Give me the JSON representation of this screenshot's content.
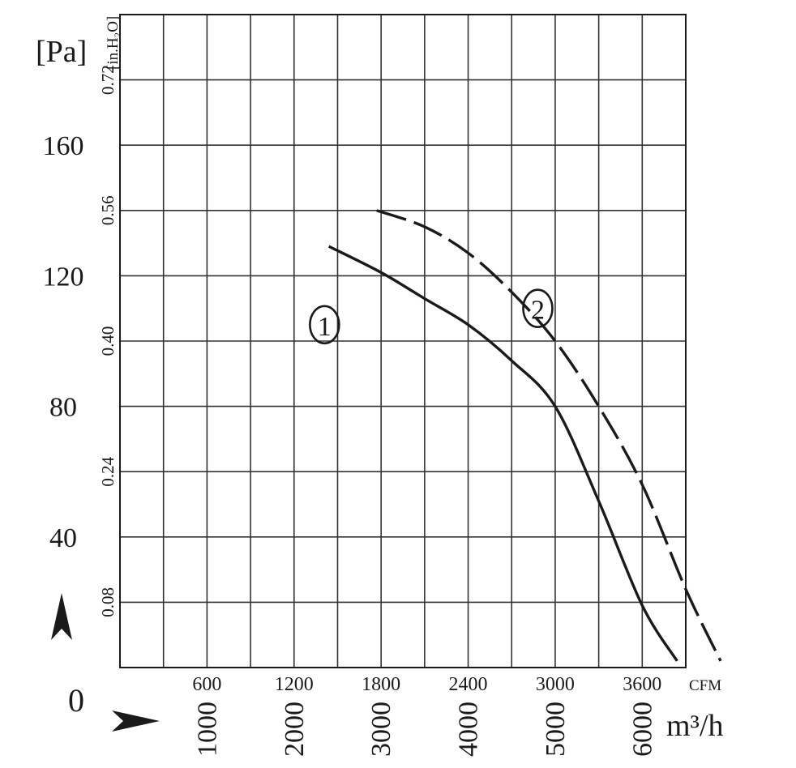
{
  "chart_data": {
    "type": "line",
    "y_primary": {
      "unit_label": "[Pa]",
      "ticks": [
        0,
        40,
        80,
        120,
        160
      ],
      "range": [
        0,
        200
      ]
    },
    "y_secondary": {
      "unit_label": "[in.H₂O]",
      "ticks": [
        "0.08",
        "0.24",
        "0.40",
        "0.56",
        "0.72"
      ],
      "tick_values_pa": [
        20,
        60,
        100,
        140,
        180
      ]
    },
    "x_primary": {
      "unit_label": "m³/h",
      "ticks": [
        "1000",
        "2000",
        "3000",
        "4000",
        "5000",
        "6000"
      ],
      "range": [
        0,
        6500
      ]
    },
    "x_secondary": {
      "unit_label": "CFM",
      "ticks": [
        "600",
        "1200",
        "1800",
        "2400",
        "3000",
        "3600"
      ],
      "tick_values_m3h": [
        1000,
        2000,
        3000,
        4000,
        5000,
        6000
      ]
    },
    "grid": true,
    "series": [
      {
        "name": "①",
        "style": "solid",
        "label_at": {
          "x": 2350,
          "y": 105
        },
        "points": [
          {
            "x": 2400,
            "y": 129
          },
          {
            "x": 3000,
            "y": 121
          },
          {
            "x": 3500,
            "y": 113
          },
          {
            "x": 4000,
            "y": 105
          },
          {
            "x": 4500,
            "y": 94
          },
          {
            "x": 5000,
            "y": 80
          },
          {
            "x": 5500,
            "y": 51
          },
          {
            "x": 6000,
            "y": 19
          },
          {
            "x": 6400,
            "y": 2
          }
        ]
      },
      {
        "name": "②",
        "style": "dashed",
        "label_at": {
          "x": 4800,
          "y": 110
        },
        "points": [
          {
            "x": 2950,
            "y": 140
          },
          {
            "x": 3500,
            "y": 135
          },
          {
            "x": 4000,
            "y": 127
          },
          {
            "x": 4500,
            "y": 115
          },
          {
            "x": 5000,
            "y": 100
          },
          {
            "x": 5500,
            "y": 80
          },
          {
            "x": 6000,
            "y": 56
          },
          {
            "x": 6500,
            "y": 24
          },
          {
            "x": 6900,
            "y": 2
          }
        ]
      }
    ],
    "annotations": [
      "⌃",
      "›"
    ]
  },
  "colors": {
    "line": "#1a1a1a",
    "grid": "#333333",
    "background": "#ffffff"
  }
}
